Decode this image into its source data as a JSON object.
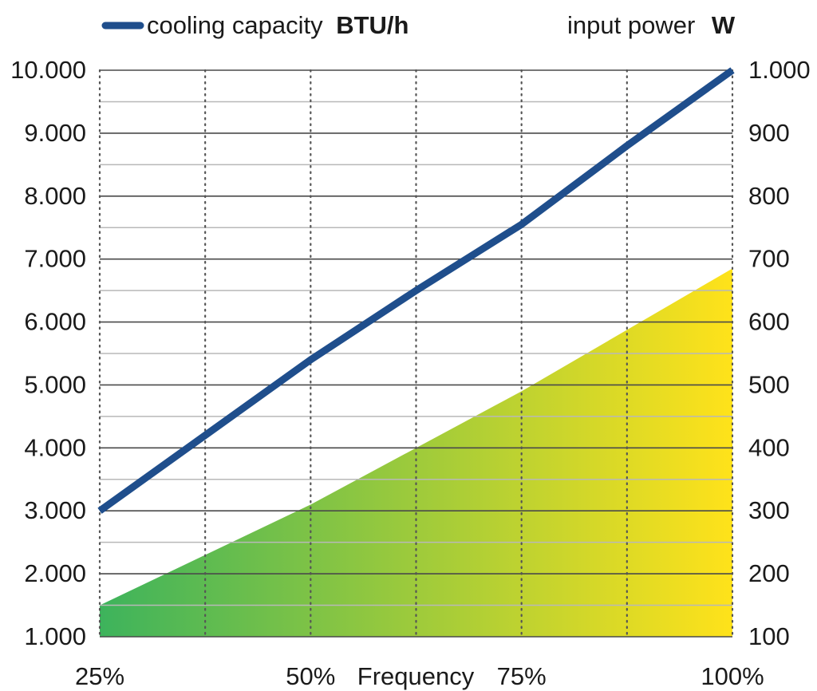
{
  "chart_data": {
    "type": "line",
    "x": [
      25,
      37.5,
      50,
      62.5,
      75,
      87.5,
      100
    ],
    "xticks": [
      {
        "value": 25,
        "label": "25%"
      },
      {
        "value": 50,
        "label": "50%"
      },
      {
        "value": 75,
        "label": "75%"
      },
      {
        "value": 100,
        "label": "100%"
      }
    ],
    "xlabel": "Frequency",
    "xlim": [
      25,
      100
    ],
    "series": [
      {
        "name": "cooling capacity",
        "unit": "BTU/h",
        "axis": "left",
        "kind": "line",
        "color": "#1f4e8c",
        "x": [
          25,
          37.5,
          50,
          62.5,
          75,
          87.5,
          100
        ],
        "values": [
          3000,
          4200,
          5400,
          6500,
          7550,
          8800,
          10000
        ]
      },
      {
        "name": "input power",
        "unit": "W",
        "axis": "right",
        "kind": "area",
        "gradient": [
          "#3db35c",
          "#ffe21a"
        ],
        "x": [
          25,
          50,
          75,
          100
        ],
        "values": [
          150,
          310,
          490,
          685
        ]
      }
    ],
    "y_left": {
      "lim": [
        1000,
        10000
      ],
      "tick_values": [
        1000,
        2000,
        3000,
        4000,
        5000,
        6000,
        7000,
        8000,
        9000,
        10000
      ],
      "tick_labels": [
        "1.000",
        "2.000",
        "3.000",
        "4.000",
        "5.000",
        "6.000",
        "7.000",
        "8.000",
        "9.000",
        "10.000"
      ]
    },
    "y_right": {
      "lim": [
        100,
        1000
      ],
      "tick_values": [
        100,
        200,
        300,
        400,
        500,
        600,
        700,
        800,
        900,
        1000
      ],
      "tick_labels": [
        "100",
        "200",
        "300",
        "400",
        "500",
        "600",
        "700",
        "800",
        "900",
        "1.000"
      ]
    },
    "grid": true,
    "legend": "top"
  }
}
